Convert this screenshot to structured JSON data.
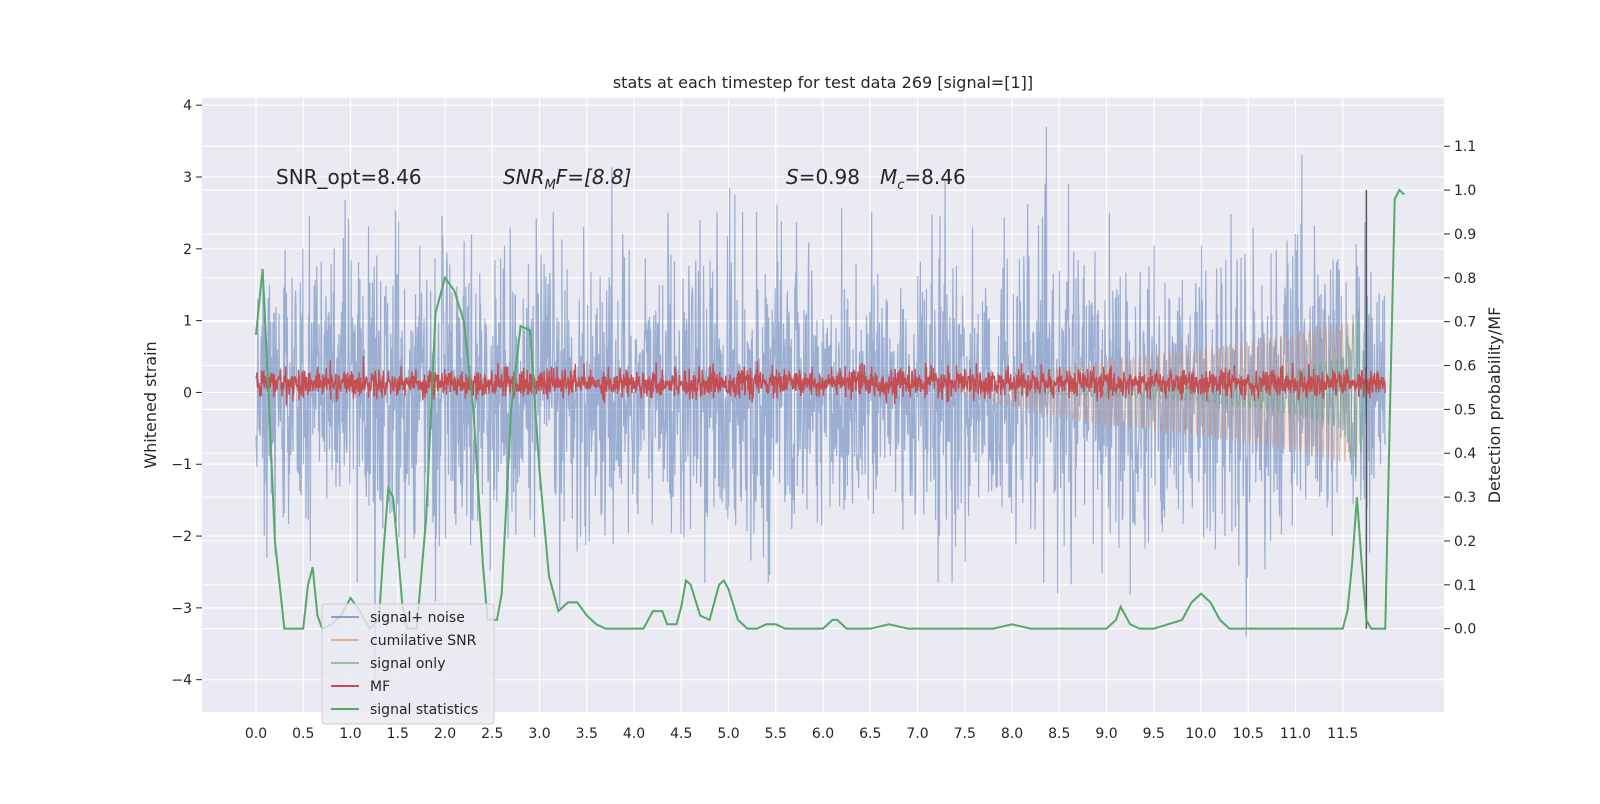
{
  "chart_data": {
    "type": "line",
    "title": "stats at each timestep for test data 269 [signal=[1]]",
    "xlabel": "",
    "ylabel": "Whitened strain",
    "y2label": "Detection probability/MF",
    "xlim": [
      -0.5,
      12.5
    ],
    "ylim": [
      -4.45,
      4.1
    ],
    "y2lim": [
      -0.19,
      1.21
    ],
    "xticks": [
      "0.0",
      "0.5",
      "1.0",
      "1.5",
      "2.0",
      "2.5",
      "3.0",
      "3.5",
      "4.0",
      "4.5",
      "5.0",
      "5.5",
      "6.0",
      "6.5",
      "7.0",
      "7.5",
      "8.0",
      "8.5",
      "9.0",
      "9.5",
      "10.0",
      "10.5",
      "11.0",
      "11.5"
    ],
    "yticks": [
      "4",
      "3",
      "2",
      "1",
      "0",
      "−1",
      "−2",
      "−3",
      "−4"
    ],
    "y2ticks": [
      "1.1",
      "1.0",
      "0.9",
      "0.8",
      "0.7",
      "0.6",
      "0.5",
      "0.4",
      "0.3",
      "0.2",
      "0.1",
      "0.0"
    ],
    "grid": true,
    "legend_position": "lower-left",
    "annotations": [
      {
        "key": "snr_opt",
        "text": "SNR_opt=8.46"
      },
      {
        "key": "snr_mf",
        "base": "SNR",
        "sub": "M",
        "tail": "F=[8.8]"
      },
      {
        "key": "stats_s",
        "base": "S",
        "tail": "=0.98"
      },
      {
        "key": "stats_mc",
        "base": "M",
        "sub": "c",
        "tail": "=8.46"
      }
    ],
    "series": [
      {
        "name": "signal+ noise",
        "axis": "left",
        "color": "#4c72b0",
        "opacity": 0.5,
        "style": "noise-envelope",
        "x_range": [
          0.0,
          11.95
        ],
        "amplitude_std": 1.0,
        "peak_max": 3.7,
        "peak_min": -4.1
      },
      {
        "name": "cumilative SNR",
        "axis": "left",
        "color": "#dd8452",
        "opacity": 0.5,
        "style": "chirp-envelope",
        "x_range": [
          7.3,
          11.65
        ],
        "envelope": [
          [
            7.3,
            0.0
          ],
          [
            8.0,
            0.2
          ],
          [
            8.5,
            0.35
          ],
          [
            9.0,
            0.45
          ],
          [
            10.0,
            0.6
          ],
          [
            11.0,
            0.82
          ],
          [
            11.5,
            0.97
          ],
          [
            11.65,
            0.95
          ]
        ]
      },
      {
        "name": "signal only",
        "axis": "left",
        "color": "#55a868",
        "opacity": 0.5,
        "style": "chirp-envelope",
        "x_range": [
          8.0,
          11.75
        ],
        "envelope": [
          [
            8.0,
            0.0
          ],
          [
            9.0,
            0.05
          ],
          [
            10.0,
            0.12
          ],
          [
            11.0,
            0.3
          ],
          [
            11.5,
            0.5
          ],
          [
            11.65,
            1.3
          ],
          [
            11.75,
            0.3
          ]
        ]
      },
      {
        "name": "MF",
        "axis": "left",
        "color": "#c44e52",
        "opacity": 1.0,
        "style": "band",
        "x_range": [
          0.0,
          11.95
        ],
        "center": 0.13,
        "amplitude": 0.1
      },
      {
        "name": "signal statistics",
        "axis": "right",
        "color": "#55a868",
        "opacity": 1.0,
        "style": "line",
        "points": [
          [
            0.0,
            0.67
          ],
          [
            0.07,
            0.82
          ],
          [
            0.13,
            0.55
          ],
          [
            0.2,
            0.2
          ],
          [
            0.3,
            0.0
          ],
          [
            0.4,
            0.0
          ],
          [
            0.5,
            0.0
          ],
          [
            0.55,
            0.1
          ],
          [
            0.6,
            0.14
          ],
          [
            0.65,
            0.03
          ],
          [
            0.7,
            0.0
          ],
          [
            0.8,
            0.01
          ],
          [
            0.9,
            0.03
          ],
          [
            1.0,
            0.07
          ],
          [
            1.1,
            0.04
          ],
          [
            1.2,
            0.0
          ],
          [
            1.3,
            0.02
          ],
          [
            1.35,
            0.18
          ],
          [
            1.4,
            0.32
          ],
          [
            1.45,
            0.3
          ],
          [
            1.5,
            0.18
          ],
          [
            1.55,
            0.05
          ],
          [
            1.6,
            0.0
          ],
          [
            1.7,
            0.0
          ],
          [
            1.8,
            0.25
          ],
          [
            1.9,
            0.72
          ],
          [
            2.0,
            0.8
          ],
          [
            2.1,
            0.77
          ],
          [
            2.2,
            0.7
          ],
          [
            2.3,
            0.5
          ],
          [
            2.4,
            0.15
          ],
          [
            2.45,
            0.02
          ],
          [
            2.55,
            0.02
          ],
          [
            2.6,
            0.08
          ],
          [
            2.7,
            0.5
          ],
          [
            2.8,
            0.69
          ],
          [
            2.9,
            0.68
          ],
          [
            3.0,
            0.36
          ],
          [
            3.1,
            0.12
          ],
          [
            3.2,
            0.04
          ],
          [
            3.3,
            0.06
          ],
          [
            3.4,
            0.06
          ],
          [
            3.5,
            0.03
          ],
          [
            3.6,
            0.01
          ],
          [
            3.7,
            0.0
          ],
          [
            4.0,
            0.0
          ],
          [
            4.1,
            0.0
          ],
          [
            4.2,
            0.04
          ],
          [
            4.3,
            0.04
          ],
          [
            4.35,
            0.01
          ],
          [
            4.45,
            0.01
          ],
          [
            4.5,
            0.05
          ],
          [
            4.55,
            0.11
          ],
          [
            4.6,
            0.1
          ],
          [
            4.7,
            0.03
          ],
          [
            4.8,
            0.02
          ],
          [
            4.9,
            0.1
          ],
          [
            4.95,
            0.11
          ],
          [
            5.0,
            0.09
          ],
          [
            5.1,
            0.02
          ],
          [
            5.2,
            0.0
          ],
          [
            5.3,
            0.0
          ],
          [
            5.4,
            0.01
          ],
          [
            5.5,
            0.01
          ],
          [
            5.6,
            0.0
          ],
          [
            6.0,
            0.0
          ],
          [
            6.1,
            0.02
          ],
          [
            6.15,
            0.02
          ],
          [
            6.25,
            0.0
          ],
          [
            6.5,
            0.0
          ],
          [
            6.7,
            0.01
          ],
          [
            6.9,
            0.0
          ],
          [
            7.2,
            0.0
          ],
          [
            7.5,
            0.0
          ],
          [
            7.8,
            0.0
          ],
          [
            8.0,
            0.01
          ],
          [
            8.2,
            0.0
          ],
          [
            8.5,
            0.0
          ],
          [
            8.8,
            0.0
          ],
          [
            9.0,
            0.0
          ],
          [
            9.1,
            0.02
          ],
          [
            9.15,
            0.05
          ],
          [
            9.25,
            0.01
          ],
          [
            9.35,
            0.0
          ],
          [
            9.5,
            0.0
          ],
          [
            9.65,
            0.01
          ],
          [
            9.8,
            0.02
          ],
          [
            9.9,
            0.06
          ],
          [
            10.0,
            0.08
          ],
          [
            10.1,
            0.06
          ],
          [
            10.2,
            0.02
          ],
          [
            10.3,
            0.0
          ],
          [
            10.5,
            0.0
          ],
          [
            11.0,
            0.0
          ],
          [
            11.5,
            0.0
          ],
          [
            11.55,
            0.04
          ],
          [
            11.6,
            0.15
          ],
          [
            11.65,
            0.3
          ],
          [
            11.7,
            0.15
          ],
          [
            11.75,
            0.02
          ],
          [
            11.8,
            0.0
          ],
          [
            11.85,
            0.0
          ],
          [
            11.95,
            0.0
          ],
          [
            12.0,
            0.5
          ],
          [
            12.05,
            0.98
          ],
          [
            12.1,
            1.0
          ],
          [
            12.15,
            0.99
          ]
        ]
      }
    ]
  }
}
